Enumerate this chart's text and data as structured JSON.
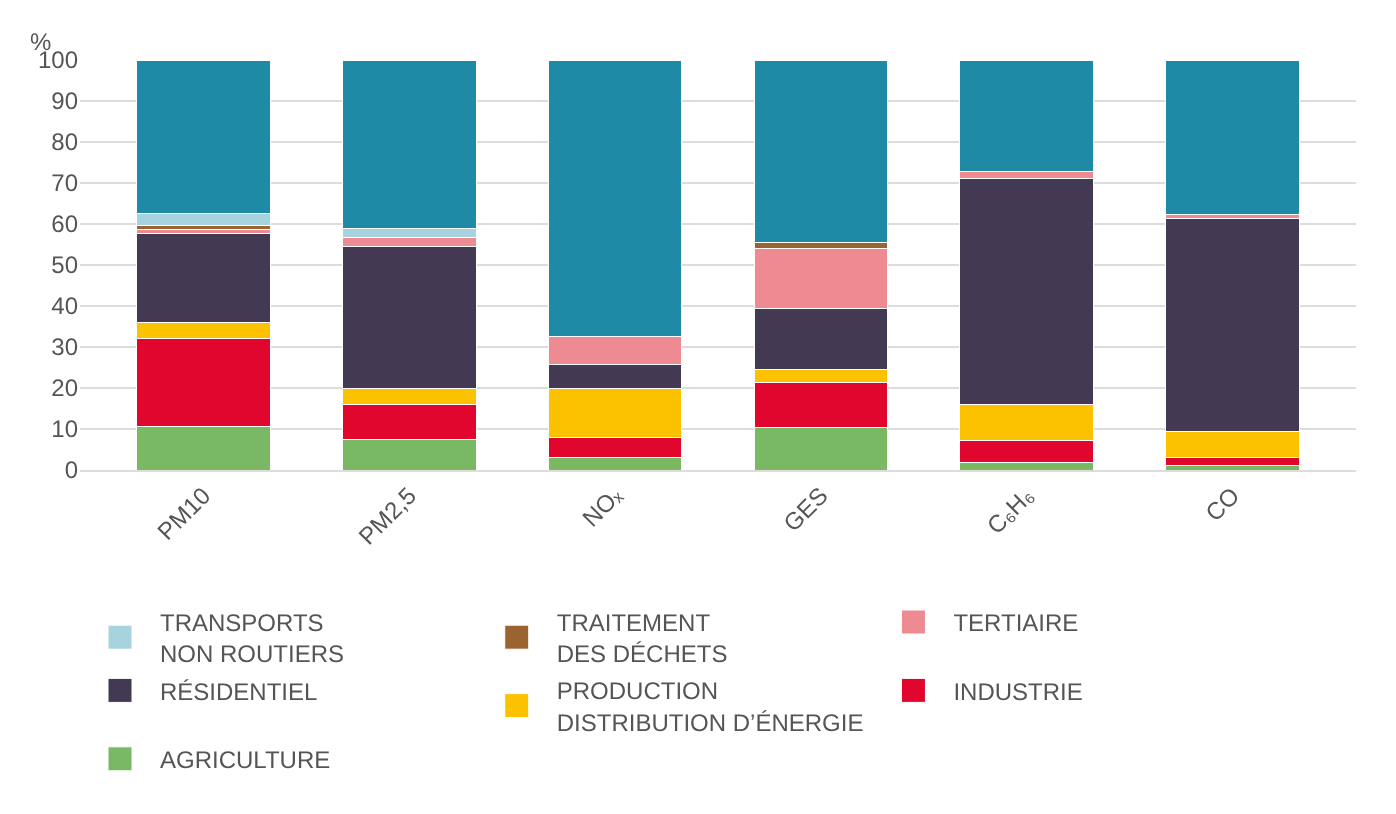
{
  "chart_data": {
    "type": "bar",
    "stacked": true,
    "ylabel": "%",
    "categories": [
      "PM10",
      "PM2,5",
      "NOₓ",
      "GES",
      "C₆H₆",
      "CO"
    ],
    "series": [
      {
        "name": "AGRICULTURE",
        "color": "#7ab963",
        "values": [
          10.5,
          7.4,
          3.1,
          10.4,
          1.9,
          1.1
        ]
      },
      {
        "name": "INDUSTRIE",
        "color": "#e1062d",
        "values": [
          21.6,
          8.5,
          4.9,
          11.0,
          5.4,
          1.9
        ]
      },
      {
        "name": "PRODUCTION\nDISTRIBUTION D’ÉNERGIE",
        "color": "#fcc200",
        "values": [
          3.8,
          4.1,
          12.0,
          3.0,
          8.6,
          6.3
        ]
      },
      {
        "name": "RÉSIDENTIEL",
        "color": "#433953",
        "values": [
          21.7,
          34.6,
          5.7,
          15.0,
          55.2,
          52.1
        ]
      },
      {
        "name": "TERTIAIRE",
        "color": "#ee8a91",
        "values": [
          1.1,
          2.0,
          6.9,
          14.7,
          1.8,
          1.0
        ]
      },
      {
        "name": "TRAITEMENT\nDES DÉCHETS",
        "color": "#9b6330",
        "values": [
          0.9,
          0,
          0,
          1.3,
          0,
          0
        ]
      },
      {
        "name": "TRANSPORTS\nNON ROUTIERS",
        "color": "#a6d3dd",
        "values": [
          3.0,
          2.3,
          0,
          0,
          0,
          0
        ]
      },
      {
        "color": "#1e8aa6",
        "values": [
          37.4,
          41.1,
          67.4,
          44.6,
          27.1,
          37.6
        ]
      }
    ],
    "ylim": [
      0,
      100
    ],
    "yticks": [
      0,
      10,
      20,
      30,
      40,
      50,
      60,
      70,
      80,
      90,
      100
    ],
    "grid": "y",
    "legend": "bottom"
  }
}
